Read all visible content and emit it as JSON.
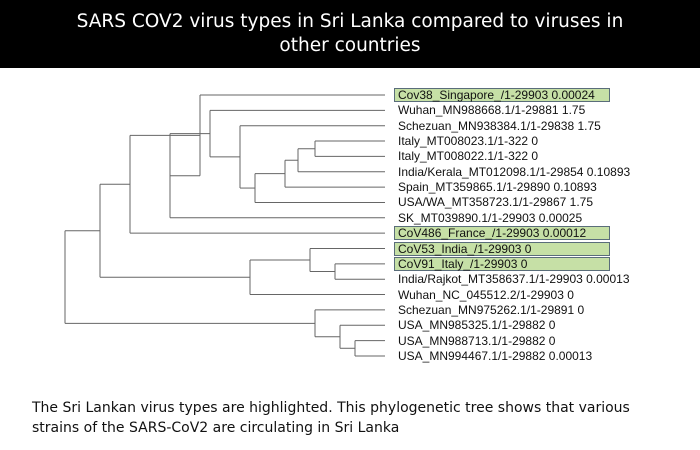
{
  "header": {
    "title": "SARS COV2 virus types in Sri Lanka compared to viruses in other countries",
    "background": "#000000",
    "text_color": "#ffffff"
  },
  "tree": {
    "highlight_color": "#c6e0a6",
    "highlight_border": "#5a6d7a",
    "line_color": "#666666",
    "leaves": [
      {
        "label": "Cov38_Singapore_/1-29903 0.00024",
        "highlighted": true
      },
      {
        "label": "Wuhan_MN988668.1/1-29881 1.75",
        "highlighted": false
      },
      {
        "label": "Schezuan_MN938384.1/1-29838 1.75",
        "highlighted": false
      },
      {
        "label": "Italy_MT008023.1/1-322 0",
        "highlighted": false
      },
      {
        "label": "Italy_MT008022.1/1-322 0",
        "highlighted": false
      },
      {
        "label": "India/Kerala_MT012098.1/1-29854 0.10893",
        "highlighted": false
      },
      {
        "label": "Spain_MT359865.1/1-29890 0.10893",
        "highlighted": false
      },
      {
        "label": "USA/WA_MT358723.1/1-29867 1.75",
        "highlighted": false
      },
      {
        "label": "SK_MT039890.1/1-29903 0.00025",
        "highlighted": false
      },
      {
        "label": "CoV486_France_/1-29903 0.00012",
        "highlighted": true
      },
      {
        "label": "CoV53_India_/1-29903 0",
        "highlighted": true
      },
      {
        "label": "CoV91_Italy_/1-29903 0",
        "highlighted": true
      },
      {
        "label": "India/Rajkot_MT358637.1/1-29903 0.00013",
        "highlighted": false
      },
      {
        "label": "Wuhan_NC_045512.2/1-29903 0",
        "highlighted": false
      },
      {
        "label": "Schezuan_MN975262.1/1-29891 0",
        "highlighted": false
      },
      {
        "label": "USA_MN985325.1/1-29882 0",
        "highlighted": false
      },
      {
        "label": "USA_MN988713.1/1-29882 0",
        "highlighted": false
      },
      {
        "label": "USA_MN994467.1/1-29882 0.00013",
        "highlighted": false
      }
    ]
  },
  "caption": {
    "text": "The Sri Lankan virus types are highlighted. This phylogenetic tree shows that various strains of the SARS-CoV2 are circulating in Sri Lanka"
  }
}
